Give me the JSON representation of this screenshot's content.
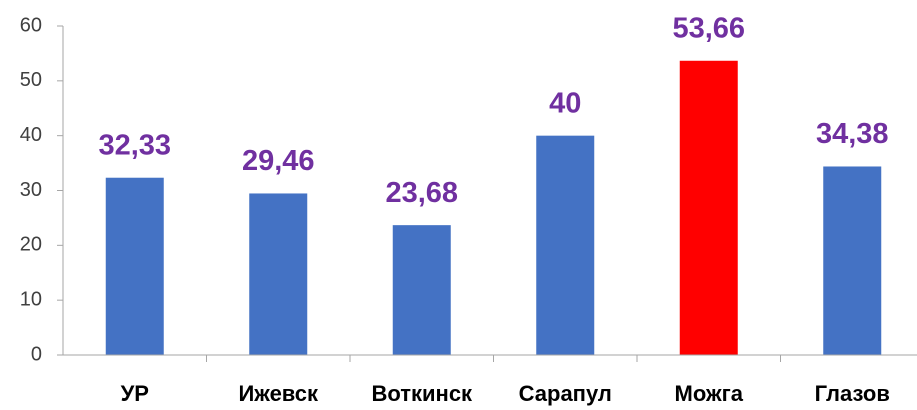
{
  "chart_data": {
    "type": "bar",
    "categories": [
      "УР",
      "Ижевск",
      "Воткинск",
      "Сарапул",
      "Можга",
      "Глазов"
    ],
    "values": [
      32.33,
      29.46,
      23.68,
      40,
      53.66,
      34.38
    ],
    "value_labels": [
      "32,33",
      "29,46",
      "23,68",
      "40",
      "53,66",
      "34,38"
    ],
    "colors": [
      "#4472c4",
      "#4472c4",
      "#4472c4",
      "#4472c4",
      "#ff0000",
      "#4472c4"
    ],
    "ylim": [
      0,
      60
    ],
    "yticks": [
      0,
      10,
      20,
      30,
      40,
      50,
      60
    ],
    "grid": false
  }
}
